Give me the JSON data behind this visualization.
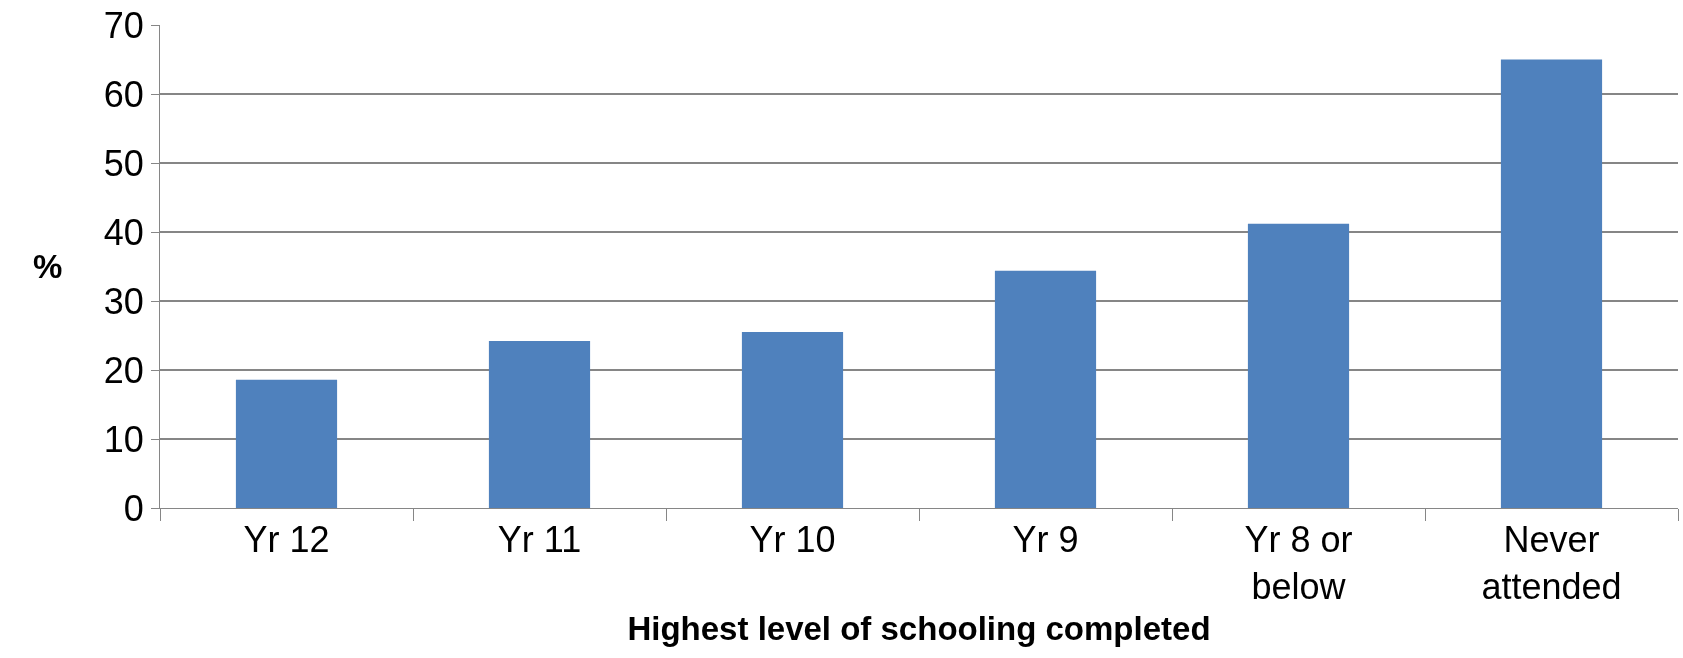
{
  "chart_data": {
    "type": "bar",
    "xlabel": "Highest level of schooling completed",
    "ylabel": "%",
    "categories": [
      "Yr 12",
      "Yr 11",
      "Yr 10",
      "Yr 9",
      "Yr 8 or\nbelow",
      "Never\nattended"
    ],
    "values": [
      18.6,
      24.2,
      25.5,
      34.4,
      41.2,
      65.0
    ],
    "color": "#4f81bd",
    "ylim": [
      0,
      70
    ],
    "yticks": [
      0,
      10,
      20,
      30,
      40,
      50,
      60,
      70
    ],
    "grid": "y"
  }
}
